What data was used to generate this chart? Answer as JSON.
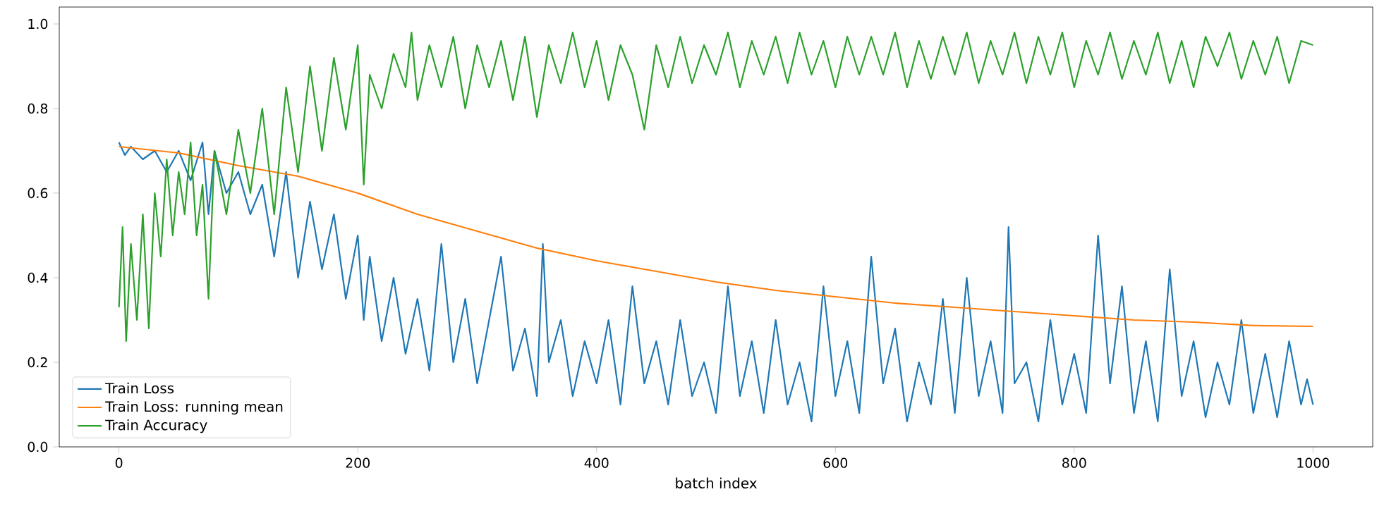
{
  "chart_data": {
    "type": "line",
    "xlabel": "batch index",
    "xlim": [
      -50,
      1050
    ],
    "ylim": [
      0,
      1.04
    ],
    "xticks": [
      0,
      200,
      400,
      600,
      800,
      1000
    ],
    "yticks": [
      {
        "value": 0,
        "label": "0.0"
      },
      {
        "value": 0.2,
        "label": "0.2"
      },
      {
        "value": 0.4,
        "label": "0.4"
      },
      {
        "value": 0.6,
        "label": "0.6"
      },
      {
        "value": 0.8,
        "label": "0.8"
      },
      {
        "value": 1,
        "label": "1.0"
      }
    ],
    "legend": "bottom left",
    "grid": false,
    "series": [
      {
        "name": "Train Loss",
        "color": "#1f77b4",
        "x": [
          0,
          5,
          10,
          20,
          30,
          40,
          50,
          60,
          70,
          75,
          80,
          90,
          100,
          110,
          120,
          130,
          140,
          150,
          160,
          170,
          180,
          190,
          200,
          205,
          210,
          220,
          230,
          240,
          250,
          260,
          270,
          280,
          290,
          300,
          310,
          320,
          330,
          340,
          350,
          355,
          360,
          370,
          380,
          390,
          400,
          410,
          420,
          430,
          440,
          450,
          460,
          470,
          480,
          490,
          500,
          510,
          520,
          530,
          540,
          550,
          560,
          570,
          580,
          590,
          600,
          610,
          620,
          630,
          640,
          650,
          660,
          670,
          680,
          690,
          700,
          710,
          720,
          730,
          740,
          745,
          750,
          760,
          770,
          780,
          790,
          800,
          810,
          820,
          830,
          840,
          850,
          860,
          870,
          880,
          890,
          900,
          910,
          920,
          930,
          940,
          950,
          960,
          970,
          980,
          990,
          995,
          1000
        ],
        "values": [
          0.72,
          0.69,
          0.71,
          0.68,
          0.7,
          0.65,
          0.7,
          0.63,
          0.72,
          0.55,
          0.7,
          0.6,
          0.65,
          0.55,
          0.62,
          0.45,
          0.65,
          0.4,
          0.58,
          0.42,
          0.55,
          0.35,
          0.5,
          0.3,
          0.45,
          0.25,
          0.4,
          0.22,
          0.35,
          0.18,
          0.48,
          0.2,
          0.35,
          0.15,
          0.3,
          0.45,
          0.18,
          0.28,
          0.12,
          0.48,
          0.2,
          0.3,
          0.12,
          0.25,
          0.15,
          0.3,
          0.1,
          0.38,
          0.15,
          0.25,
          0.1,
          0.3,
          0.12,
          0.2,
          0.08,
          0.38,
          0.12,
          0.25,
          0.08,
          0.3,
          0.1,
          0.2,
          0.06,
          0.38,
          0.12,
          0.25,
          0.08,
          0.45,
          0.15,
          0.28,
          0.06,
          0.2,
          0.1,
          0.35,
          0.08,
          0.4,
          0.12,
          0.25,
          0.08,
          0.52,
          0.15,
          0.2,
          0.06,
          0.3,
          0.1,
          0.22,
          0.08,
          0.5,
          0.15,
          0.38,
          0.08,
          0.25,
          0.06,
          0.42,
          0.12,
          0.25,
          0.07,
          0.2,
          0.1,
          0.3,
          0.08,
          0.22,
          0.07,
          0.25,
          0.1,
          0.16,
          0.1
        ]
      },
      {
        "name": "Train Loss: running mean",
        "color": "#ff7f0e",
        "x": [
          0,
          50,
          100,
          150,
          200,
          250,
          300,
          350,
          400,
          450,
          500,
          550,
          600,
          650,
          700,
          750,
          800,
          850,
          900,
          950,
          1000
        ],
        "values": [
          0.71,
          0.695,
          0.665,
          0.64,
          0.6,
          0.55,
          0.51,
          0.47,
          0.44,
          0.415,
          0.39,
          0.37,
          0.355,
          0.34,
          0.33,
          0.32,
          0.31,
          0.3,
          0.295,
          0.287,
          0.285
        ]
      },
      {
        "name": "Train Accuracy",
        "color": "#2ca02c",
        "x": [
          0,
          3,
          6,
          10,
          15,
          20,
          25,
          30,
          35,
          40,
          45,
          50,
          55,
          60,
          65,
          70,
          75,
          80,
          90,
          100,
          110,
          120,
          130,
          140,
          150,
          160,
          170,
          180,
          190,
          200,
          205,
          210,
          220,
          230,
          240,
          245,
          250,
          260,
          270,
          280,
          290,
          300,
          310,
          320,
          330,
          340,
          350,
          360,
          370,
          380,
          390,
          400,
          410,
          420,
          430,
          440,
          450,
          460,
          470,
          480,
          490,
          500,
          510,
          520,
          530,
          540,
          550,
          560,
          570,
          580,
          590,
          600,
          610,
          620,
          630,
          640,
          650,
          660,
          670,
          680,
          690,
          700,
          710,
          720,
          730,
          740,
          750,
          760,
          770,
          780,
          790,
          800,
          810,
          820,
          830,
          840,
          850,
          860,
          870,
          880,
          890,
          900,
          910,
          920,
          930,
          940,
          950,
          960,
          970,
          980,
          990,
          1000
        ],
        "values": [
          0.33,
          0.52,
          0.25,
          0.48,
          0.3,
          0.55,
          0.28,
          0.6,
          0.45,
          0.68,
          0.5,
          0.65,
          0.55,
          0.72,
          0.5,
          0.62,
          0.35,
          0.7,
          0.55,
          0.75,
          0.6,
          0.8,
          0.55,
          0.85,
          0.65,
          0.9,
          0.7,
          0.92,
          0.75,
          0.95,
          0.62,
          0.88,
          0.8,
          0.93,
          0.85,
          0.98,
          0.82,
          0.95,
          0.85,
          0.97,
          0.8,
          0.95,
          0.85,
          0.96,
          0.82,
          0.97,
          0.78,
          0.95,
          0.86,
          0.98,
          0.85,
          0.96,
          0.82,
          0.95,
          0.88,
          0.75,
          0.95,
          0.85,
          0.97,
          0.86,
          0.95,
          0.88,
          0.98,
          0.85,
          0.96,
          0.88,
          0.97,
          0.86,
          0.98,
          0.88,
          0.96,
          0.85,
          0.97,
          0.88,
          0.97,
          0.88,
          0.98,
          0.85,
          0.96,
          0.87,
          0.97,
          0.88,
          0.98,
          0.86,
          0.96,
          0.88,
          0.98,
          0.86,
          0.97,
          0.88,
          0.98,
          0.85,
          0.96,
          0.88,
          0.98,
          0.87,
          0.96,
          0.88,
          0.98,
          0.86,
          0.96,
          0.85,
          0.97,
          0.9,
          0.98,
          0.87,
          0.96,
          0.88,
          0.97,
          0.86,
          0.96,
          0.95
        ]
      }
    ]
  }
}
